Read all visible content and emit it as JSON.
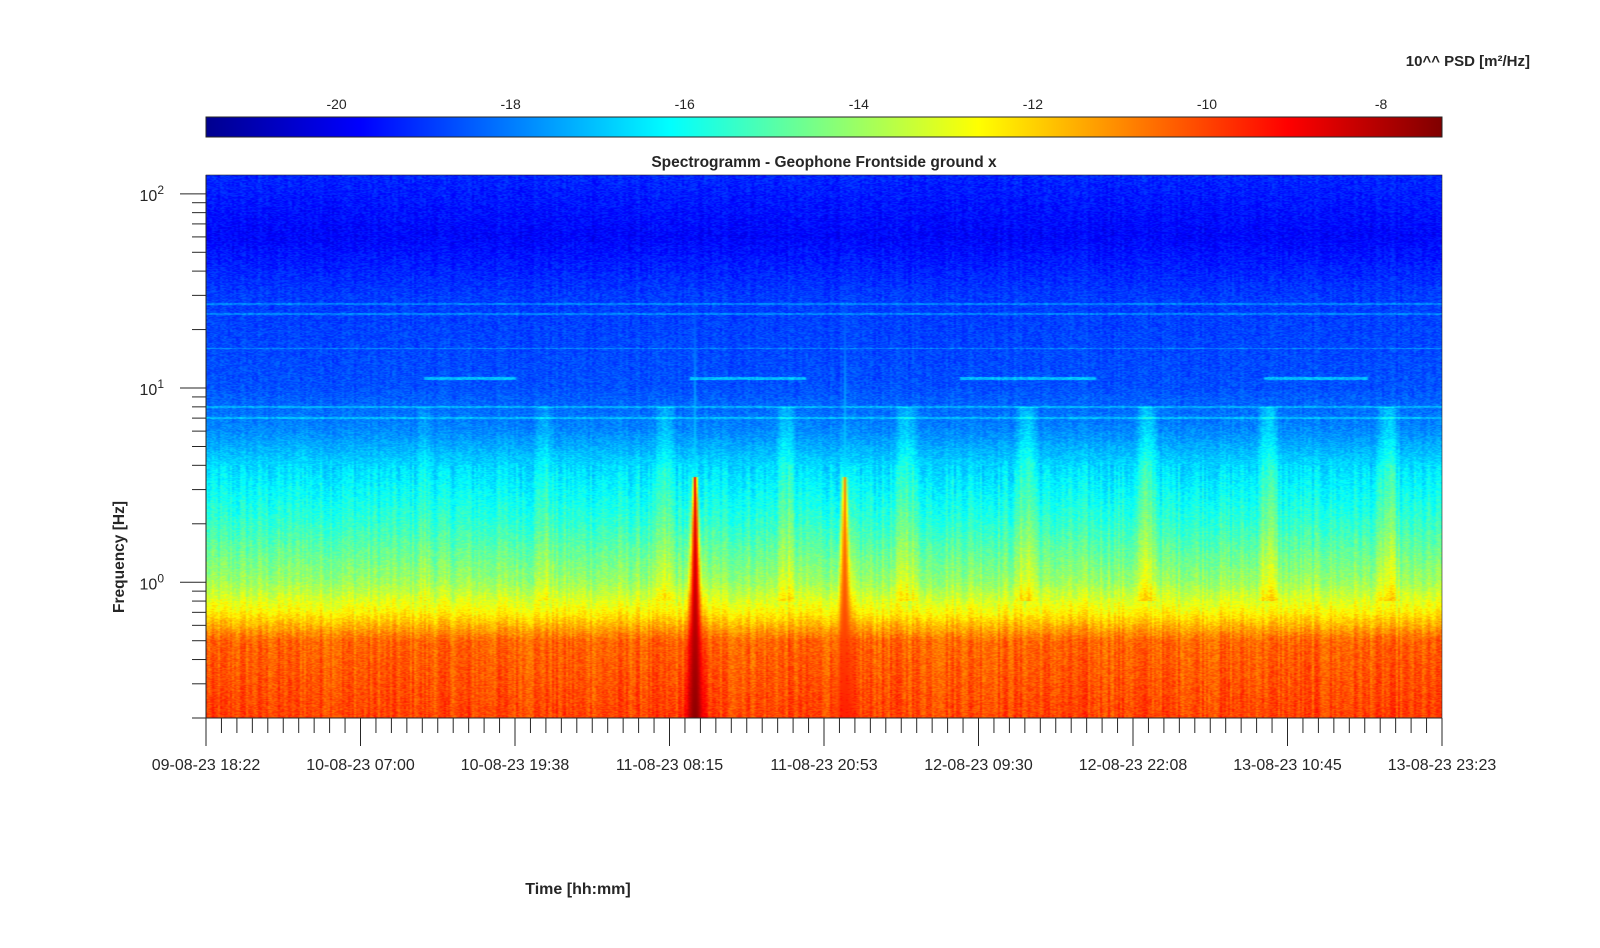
{
  "chart_data": {
    "type": "heatmap",
    "title": "Spectrogramm - Geophone Frontside ground x",
    "xlabel": "Time [hh:mm]",
    "ylabel": "Frequency [Hz]",
    "x_tick_labels": [
      "09-08-23 18:22",
      "10-08-23 07:00",
      "10-08-23 19:38",
      "11-08-23 08:15",
      "11-08-23 20:53",
      "12-08-23 09:30",
      "12-08-23 22:08",
      "13-08-23 10:45",
      "13-08-23 23:23"
    ],
    "y_scale": "log",
    "y_tick_values": [
      1,
      10,
      100
    ],
    "y_tick_labels": [
      {
        "base": "10",
        "exp": "0"
      },
      {
        "base": "10",
        "exp": "1"
      },
      {
        "base": "10",
        "exp": "2"
      }
    ],
    "ylim_hz": [
      0.2,
      125
    ],
    "colorbar": {
      "label": "10^^ PSD [m²/Hz]",
      "colormap": "jet",
      "range": [
        -21.5,
        -7.3
      ],
      "ticks": [
        "-20",
        "-18",
        "-16",
        "-14",
        "-12",
        "-10",
        "-8"
      ],
      "tick_values": [
        -20,
        -18,
        -16,
        -14,
        -12,
        -10,
        -8
      ],
      "position": "top"
    },
    "features": {
      "background_by_frequency": [
        {
          "hz": 0.2,
          "log_psd": -10.0
        },
        {
          "hz": 0.5,
          "log_psd": -10.5
        },
        {
          "hz": 0.7,
          "log_psd": -12.5
        },
        {
          "hz": 1.0,
          "log_psd": -14.0
        },
        {
          "hz": 2.0,
          "log_psd": -15.5
        },
        {
          "hz": 4.0,
          "log_psd": -16.7
        },
        {
          "hz": 6.0,
          "log_psd": -17.8
        },
        {
          "hz": 10.0,
          "log_psd": -18.6
        },
        {
          "hz": 30.0,
          "log_psd": -18.9
        },
        {
          "hz": 60.0,
          "log_psd": -19.7
        },
        {
          "hz": 125.0,
          "log_psd": -19.2
        }
      ],
      "events": [
        {
          "time_fraction": 0.395,
          "f_top_hz": 3.5,
          "peak_log_psd": -7.5
        },
        {
          "time_fraction": 0.516,
          "f_top_hz": 3.5,
          "peak_log_psd": -9.5
        }
      ],
      "tonal_lines_hz": [
        27,
        24,
        16,
        8,
        7
      ],
      "intermittent_11hz_segments": [
        [
          0.175,
          0.25
        ],
        [
          0.39,
          0.485
        ],
        [
          0.61,
          0.72
        ],
        [
          0.855,
          0.94
        ]
      ]
    }
  }
}
